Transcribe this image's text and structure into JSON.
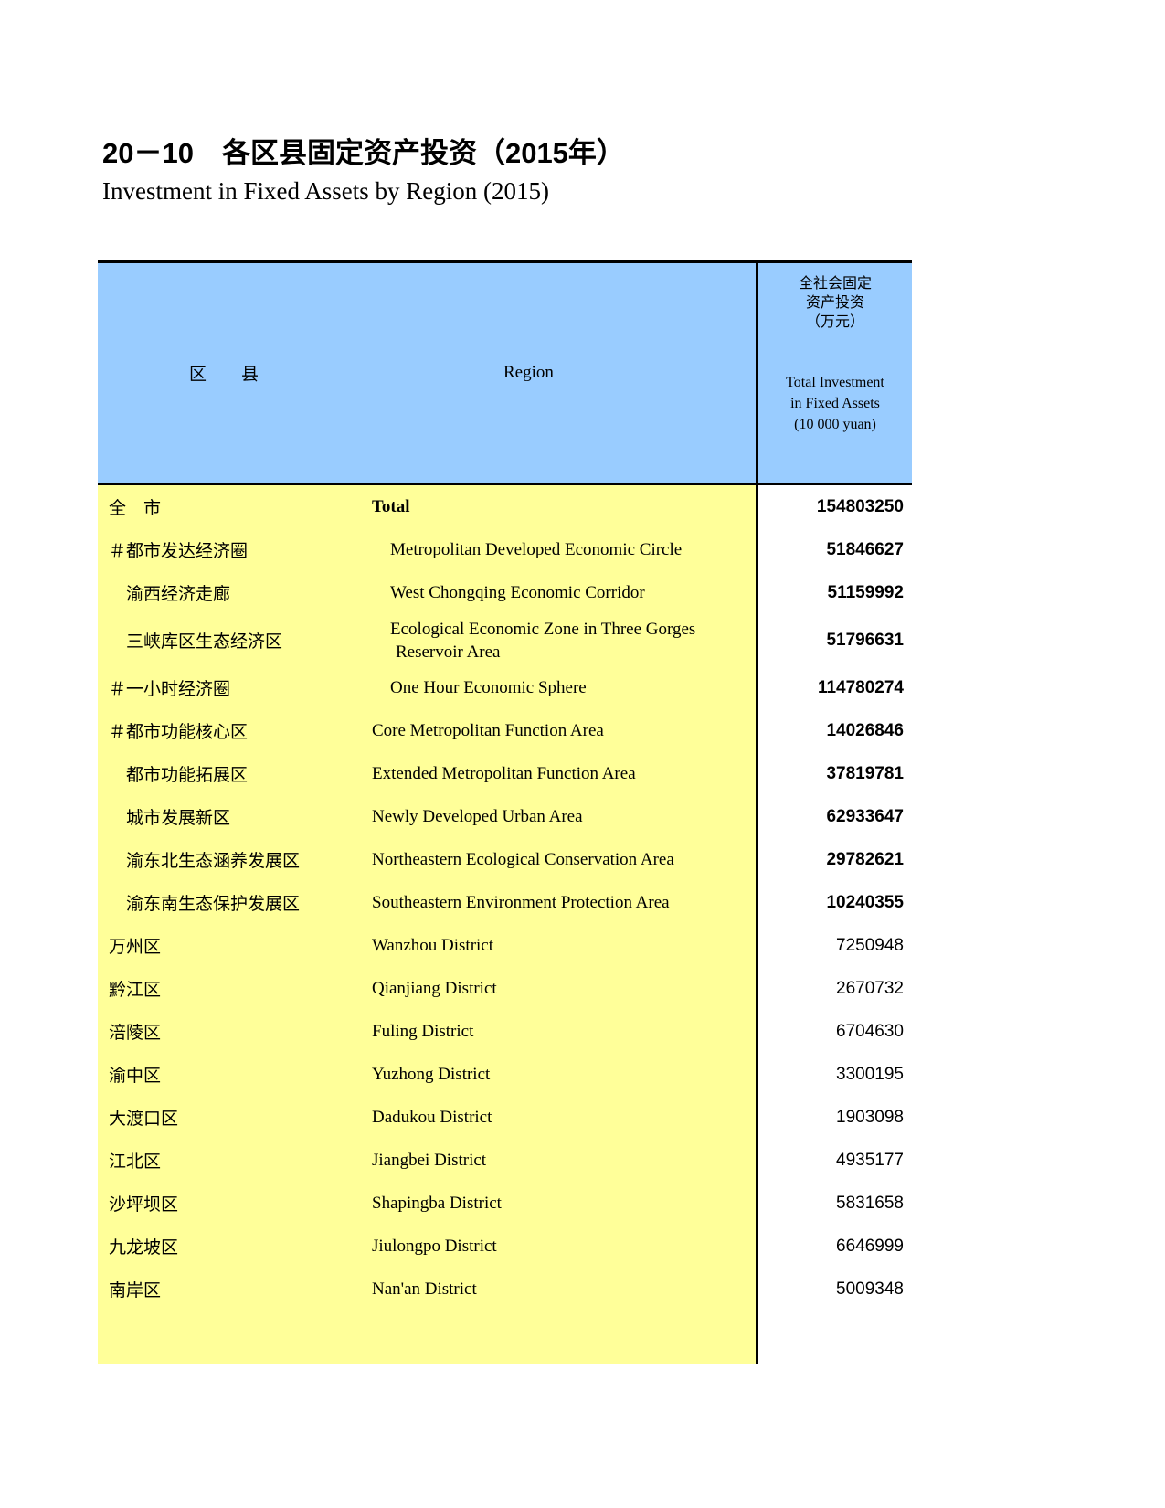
{
  "page": {
    "title_zh": "20－10　各区县固定资产投资（2015年）",
    "title_en": "Investment in Fixed Assets by Region (2015)"
  },
  "colors": {
    "header_bg": "#99CCFF",
    "body_bg": "#FFFF99",
    "value_col_bg": "#FFFFFF",
    "border": "#000000"
  },
  "table": {
    "header": {
      "region_col_zh": "区　　县",
      "region_col_en": "Region",
      "value_col_zh_lines": [
        "全社会固定",
        "资产投资",
        "（万元）"
      ],
      "value_col_en_lines": [
        "Total Investment",
        "in Fixed Assets",
        "(10 000 yuan)"
      ]
    },
    "rows": [
      {
        "zh": "全　市",
        "en": "Total",
        "value": "154803250",
        "level_zh": 0,
        "level_en": 0
      },
      {
        "zh": "＃都市发达经济圈",
        "en": "Metropolitan Developed Economic Circle",
        "value": "51846627",
        "level_zh": 0,
        "level_en": 1
      },
      {
        "zh": "渝西经济走廊",
        "en": "West Chongqing Economic Corridor",
        "value": "51159992",
        "level_zh": 1,
        "level_en": 1
      },
      {
        "zh": "三峡库区生态经济区",
        "en_line1": "Ecological Economic Zone in Three Gorges",
        "en_line2": "Reservoir Area",
        "value": "51796631",
        "level_zh": 1,
        "level_en": 1
      },
      {
        "zh": "＃一小时经济圈",
        "en": "One Hour Economic Sphere",
        "value": "114780274",
        "level_zh": 0,
        "level_en": 1
      },
      {
        "zh": "＃都市功能核心区",
        "en": "Core Metropolitan Function Area",
        "value": "14026846",
        "level_zh": 0,
        "level_en": 0
      },
      {
        "zh": "都市功能拓展区",
        "en": "Extended Metropolitan Function Area",
        "value": "37819781",
        "level_zh": 1,
        "level_en": 0
      },
      {
        "zh": "城市发展新区",
        "en": "Newly Developed Urban Area",
        "value": "62933647",
        "level_zh": 1,
        "level_en": 0
      },
      {
        "zh": "渝东北生态涵养发展区",
        "en": "Northeastern Ecological Conservation Area",
        "value": "29782621",
        "level_zh": 1,
        "level_en": 0
      },
      {
        "zh": "渝东南生态保护发展区",
        "en": "Southeastern Environment Protection Area",
        "value": "10240355",
        "level_zh": 1,
        "level_en": 0
      },
      {
        "zh": "万州区",
        "en": "Wanzhou District",
        "value": "7250948",
        "level_zh": 0,
        "level_en": 0
      },
      {
        "zh": "黔江区",
        "en": "Qianjiang District",
        "value": "2670732",
        "level_zh": 0,
        "level_en": 0
      },
      {
        "zh": "涪陵区",
        "en": "Fuling District",
        "value": "6704630",
        "level_zh": 0,
        "level_en": 0
      },
      {
        "zh": "渝中区",
        "en": "Yuzhong District",
        "value": "3300195",
        "level_zh": 0,
        "level_en": 0
      },
      {
        "zh": "大渡口区",
        "en": "Dadukou District",
        "value": "1903098",
        "level_zh": 0,
        "level_en": 0
      },
      {
        "zh": "江北区",
        "en": "Jiangbei District",
        "value": "4935177",
        "level_zh": 0,
        "level_en": 0
      },
      {
        "zh": "沙坪坝区",
        "en": "Shapingba District",
        "value": "5831658",
        "level_zh": 0,
        "level_en": 0
      },
      {
        "zh": "九龙坡区",
        "en": "Jiulongpo District",
        "value": "6646999",
        "level_zh": 0,
        "level_en": 0
      },
      {
        "zh": "南岸区",
        "en": "Nan'an District",
        "value": "5009348",
        "level_zh": 0,
        "level_en": 0
      }
    ]
  }
}
